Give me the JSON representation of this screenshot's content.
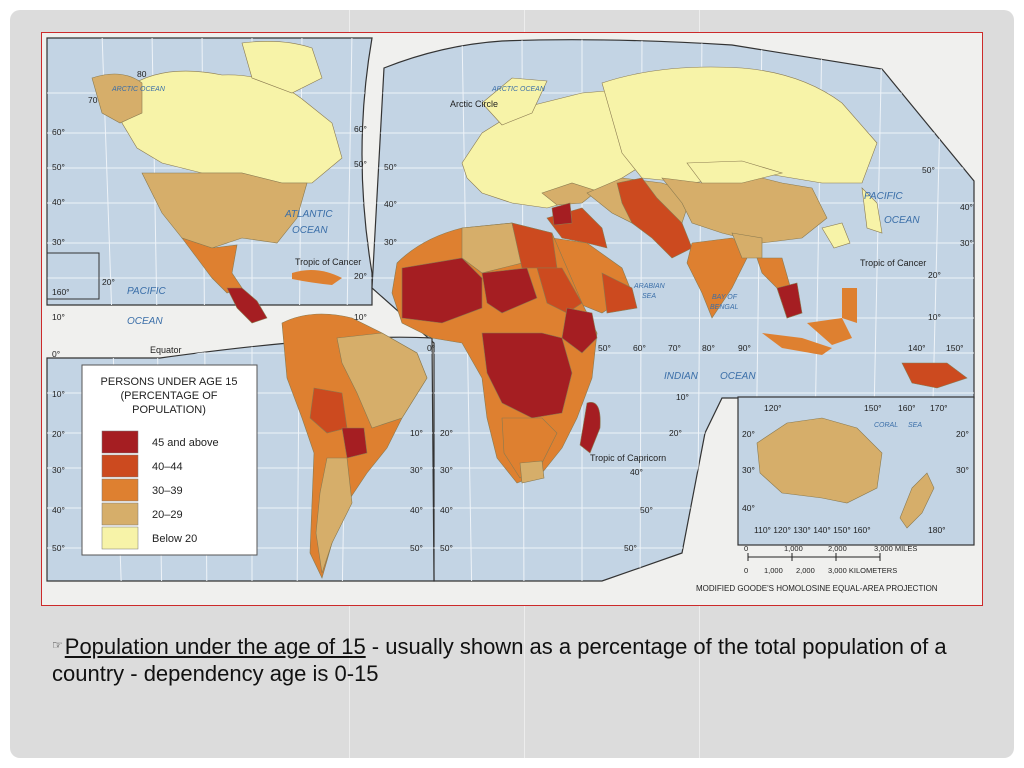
{
  "map": {
    "legend": {
      "title_lines": [
        "PERSONS UNDER AGE 15",
        "(PERCENTAGE OF",
        "POPULATION)"
      ],
      "items": [
        {
          "label": "45 and above",
          "color": "#a51e22"
        },
        {
          "label": "40–44",
          "color": "#cc4a1f"
        },
        {
          "label": "30–39",
          "color": "#de8030"
        },
        {
          "label": "20–29",
          "color": "#d6ae6a"
        },
        {
          "label": "Below 20",
          "color": "#f7f3a8"
        }
      ]
    },
    "ocean_labels": {
      "arctic_ocean_1": "ARCTIC OCEAN",
      "arctic_ocean_2": "ARCTIC OCEAN",
      "atlantic_1": "ATLANTIC",
      "atlantic_2": "OCEAN",
      "pacific_w1": "PACIFIC",
      "pacific_w2": "OCEAN",
      "pacific_e1": "PACIFIC",
      "pacific_e2": "OCEAN",
      "indian_1": "INDIAN",
      "indian_2": "OCEAN",
      "arabian_1": "ARABIAN",
      "arabian_2": "SEA",
      "bengal_1": "BAY OF",
      "bengal_2": "BENGAL",
      "coral_1": "CORAL",
      "coral_2": "SEA"
    },
    "line_labels": {
      "arctic_circle": "Arctic Circle",
      "tropic_cancer_w": "Tropic of Cancer",
      "tropic_cancer_e": "Tropic of Cancer",
      "equator": "Equator",
      "tropic_capricorn": "Tropic of Capricorn"
    },
    "left_lat_ticks": [
      "70",
      "60°",
      "50°",
      "40°",
      "30°",
      "20°",
      "10°",
      "0°",
      "10°",
      "20°",
      "30°",
      "40°",
      "50°"
    ],
    "inner_lat_ticks": [
      "60°",
      "50°",
      "40°",
      "30°",
      "20°",
      "10°",
      "0°",
      "10°",
      "20°",
      "30°",
      "40°",
      "50°"
    ],
    "right_lat_ticks": [
      "50°",
      "40°",
      "30°",
      "20°",
      "10°"
    ],
    "top_ticks": [
      "80",
      "60°",
      "50°",
      "50°",
      "40°",
      "30°"
    ],
    "lon_labels": [
      "0°",
      "50°",
      "60°",
      "70°",
      "80°",
      "90°",
      "140°",
      "150°",
      "160°",
      "20°",
      "10°",
      "10°"
    ],
    "aus_ticks_top": [
      "120°",
      "150°",
      "160°",
      "170°"
    ],
    "aus_ticks_side": [
      "20°",
      "20°",
      "30°",
      "30°",
      "40°"
    ],
    "aus_ticks_bottom": "110° 120° 130° 140° 150° 160°",
    "aus_tick_180": "180°",
    "scale_miles_ticks": [
      "0",
      "1,000",
      "2,000",
      "3,000 MILES"
    ],
    "scale_km_ticks": [
      "0",
      "1,000",
      "2,000",
      "3,000 KILOMETERS"
    ],
    "projection": "MODIFIED GOODE'S HOMOLOSINE EQUAL-AREA PROJECTION"
  },
  "caption": {
    "bullet": "☞",
    "term": "Population under the age of 15",
    "rest": " - usually shown as a percentage of the total population of a country - dependency age is 0-15"
  }
}
